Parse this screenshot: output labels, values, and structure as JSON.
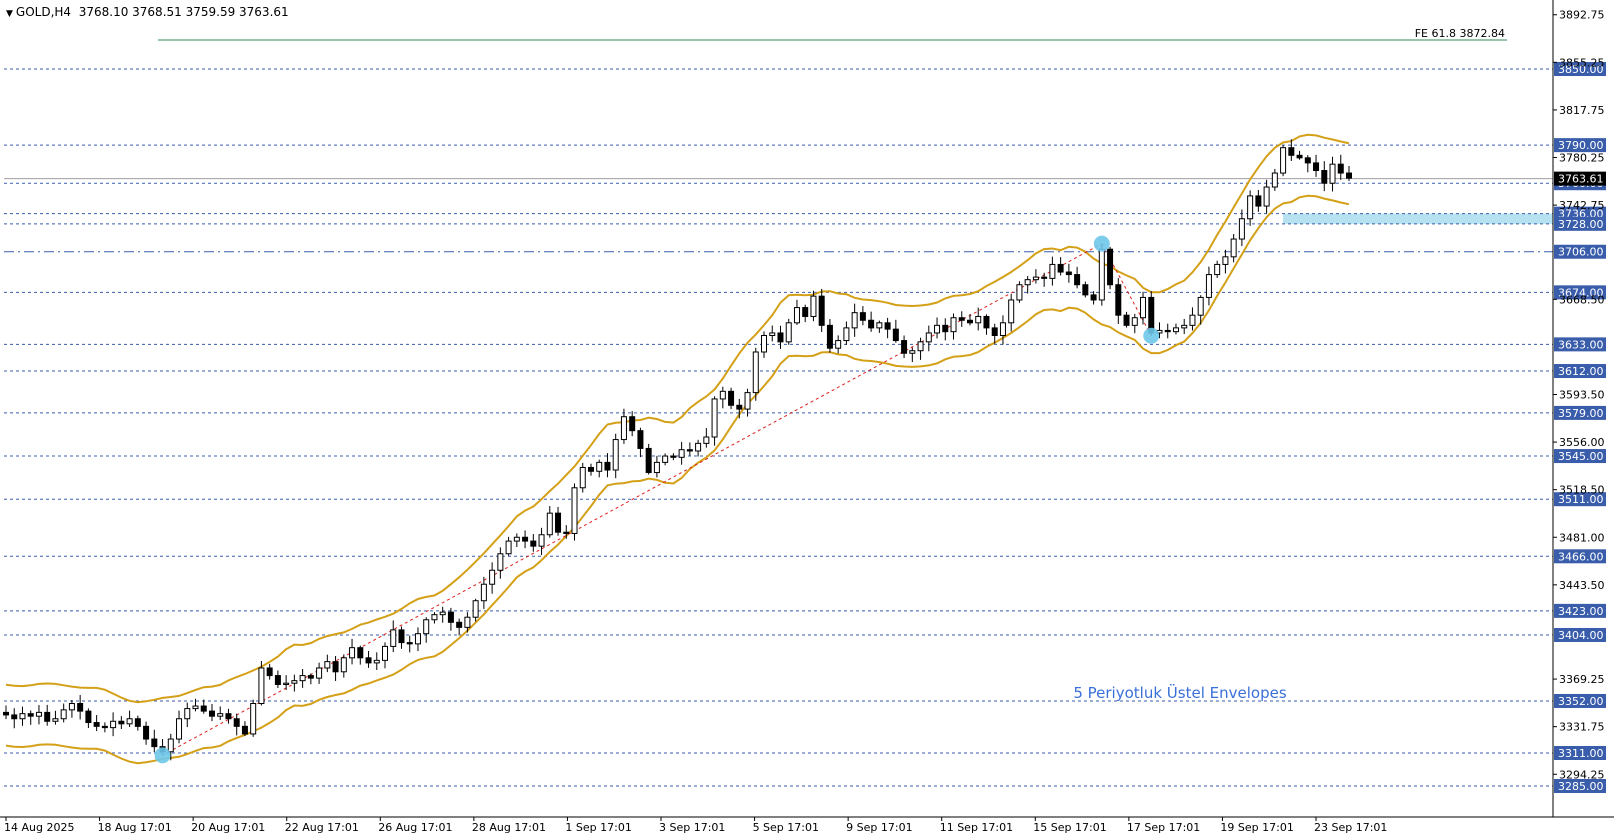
{
  "header": {
    "symbol": "GOLD,H4",
    "ohlc": "3768.10 3768.51 3759.59 3763.61"
  },
  "colors": {
    "background": "#ffffff",
    "grid_line": "#3a5dab",
    "tag_bg": "#3a5dab",
    "envelope": "#d4a017",
    "trend": "#e02020",
    "fib": "#2e8b57",
    "zone": "#a8dced",
    "dot": "#6ec6ea",
    "text_label": "#3a6fd8",
    "price_tag_current": "#000000"
  },
  "chart_data": {
    "type": "candlestick",
    "symbol": "GOLD",
    "timeframe": "H4",
    "title": "",
    "xlabel": "",
    "ylabel": "",
    "ylim": [
      3280,
      3900
    ],
    "grid": false,
    "current_price": 3763.61,
    "x_tick_labels": [
      "14 Aug 2025",
      "18 Aug 17:01",
      "20 Aug 17:01",
      "22 Aug 17:01",
      "26 Aug 17:01",
      "28 Aug 17:01",
      "1 Sep 17:01",
      "3 Sep 17:01",
      "5 Sep 17:01",
      "9 Sep 17:01",
      "11 Sep 17:01",
      "15 Sep 17:01",
      "17 Sep 17:01",
      "19 Sep 17:01",
      "23 Sep 17:01"
    ],
    "y_tick_labels": [
      "3892.75",
      "3855.25",
      "3817.75",
      "3780.25",
      "3742.75",
      "3668.50",
      "3593.50",
      "3556.00",
      "3518.50",
      "3481.00",
      "3443.50",
      "3369.25",
      "3331.75",
      "3294.25"
    ],
    "horizontal_levels": [
      {
        "value": 3850.0,
        "label": "3850.00"
      },
      {
        "value": 3790.0,
        "label": "3790.00"
      },
      {
        "value": 3760.0,
        "label": "3760.00"
      },
      {
        "value": 3736.0,
        "label": "3736.00"
      },
      {
        "value": 3728.0,
        "label": "3728.00"
      },
      {
        "value": 3706.0,
        "label": "3706.00",
        "style": "dash-dot"
      },
      {
        "value": 3674.0,
        "label": "3674.00"
      },
      {
        "value": 3633.0,
        "label": "3633.00"
      },
      {
        "value": 3612.0,
        "label": "3612.00"
      },
      {
        "value": 3579.0,
        "label": "3579.00"
      },
      {
        "value": 3545.0,
        "label": "3545.00"
      },
      {
        "value": 3511.0,
        "label": "3511.00"
      },
      {
        "value": 3466.0,
        "label": "3466.00"
      },
      {
        "value": 3423.0,
        "label": "3423.00"
      },
      {
        "value": 3404.0,
        "label": "3404.00"
      },
      {
        "value": 3352.0,
        "label": "3352.00"
      },
      {
        "value": 3311.0,
        "label": "3311.00"
      },
      {
        "value": 3285.0,
        "label": "3285.00"
      }
    ],
    "fib_level": {
      "label": "FE 61.8 3872.84",
      "value": 3872.84
    },
    "zone": {
      "from": 3728.0,
      "to": 3736.0
    },
    "annotation": "5 Periyotluk Üstel Envelopes",
    "closes": [
      3341,
      3338,
      3342,
      3340,
      3343,
      3336,
      3338,
      3345,
      3350,
      3344,
      3335,
      3332,
      3331,
      3336,
      3334,
      3338,
      3332,
      3322,
      3316,
      3312,
      3322,
      3338,
      3346,
      3348,
      3344,
      3340,
      3342,
      3338,
      3332,
      3326,
      3350,
      3378,
      3372,
      3365,
      3366,
      3368,
      3372,
      3370,
      3378,
      3383,
      3375,
      3386,
      3394,
      3386,
      3382,
      3384,
      3395,
      3408,
      3398,
      3397,
      3405,
      3416,
      3420,
      3422,
      3414,
      3410,
      3418,
      3431,
      3444,
      3455,
      3468,
      3478,
      3481,
      3478,
      3474,
      3483,
      3500,
      3485,
      3484,
      3520,
      3536,
      3533,
      3540,
      3534,
      3558,
      3576,
      3565,
      3551,
      3532,
      3540,
      3545,
      3544,
      3550,
      3549,
      3555,
      3560,
      3590,
      3596,
      3585,
      3582,
      3595,
      3627,
      3640,
      3642,
      3635,
      3650,
      3662,
      3655,
      3671,
      3648,
      3630,
      3636,
      3646,
      3658,
      3652,
      3646,
      3650,
      3645,
      3636,
      3626,
      3628,
      3635,
      3642,
      3648,
      3643,
      3654,
      3652,
      3650,
      3655,
      3646,
      3640,
      3650,
      3668,
      3680,
      3684,
      3686,
      3685,
      3696,
      3690,
      3688,
      3680,
      3672,
      3668,
      3708,
      3680,
      3656,
      3648,
      3654,
      3670,
      3642,
      3644,
      3643,
      3646,
      3648,
      3656,
      3670,
      3688,
      3696,
      3702,
      3716,
      3732,
      3750,
      3742,
      3757,
      3768,
      3788,
      3782,
      3780,
      3776,
      3770,
      3760,
      3775,
      3768,
      3764
    ]
  }
}
